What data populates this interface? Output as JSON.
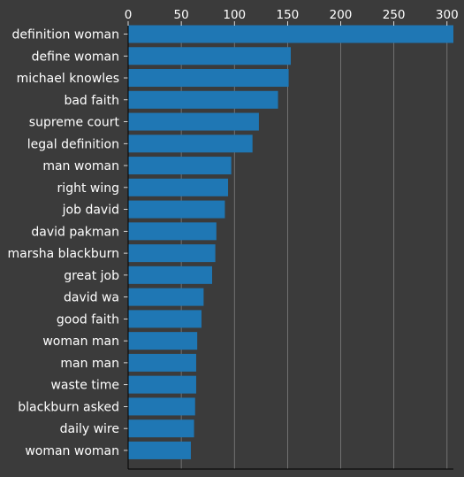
{
  "chart_data": {
    "type": "bar",
    "orientation": "horizontal",
    "title": "",
    "xlabel": "",
    "ylabel": "",
    "xlim": [
      0,
      306
    ],
    "x_ticks": [
      0,
      50,
      100,
      150,
      200,
      250,
      300
    ],
    "x_axis_position": "top",
    "grid": "vertical lines",
    "categories": [
      "definition woman",
      "define woman",
      "michael knowles",
      "bad faith",
      "supreme court",
      "legal definition",
      "man woman",
      "right wing",
      "job david",
      "david pakman",
      "marsha blackburn",
      "great job",
      "david wa",
      "good faith",
      "woman man",
      "man man",
      "waste time",
      "blackburn asked",
      "daily wire",
      "woman woman"
    ],
    "values": [
      306,
      153,
      151,
      141,
      123,
      117,
      97,
      94,
      91,
      83,
      82,
      79,
      71,
      69,
      65,
      64,
      64,
      63,
      62,
      59
    ],
    "colors": {
      "background": "#3b3b3b",
      "bar": "#1f77b4",
      "grid": "#7f7f7f",
      "text": "#ffffff",
      "axis": "#000000"
    }
  }
}
